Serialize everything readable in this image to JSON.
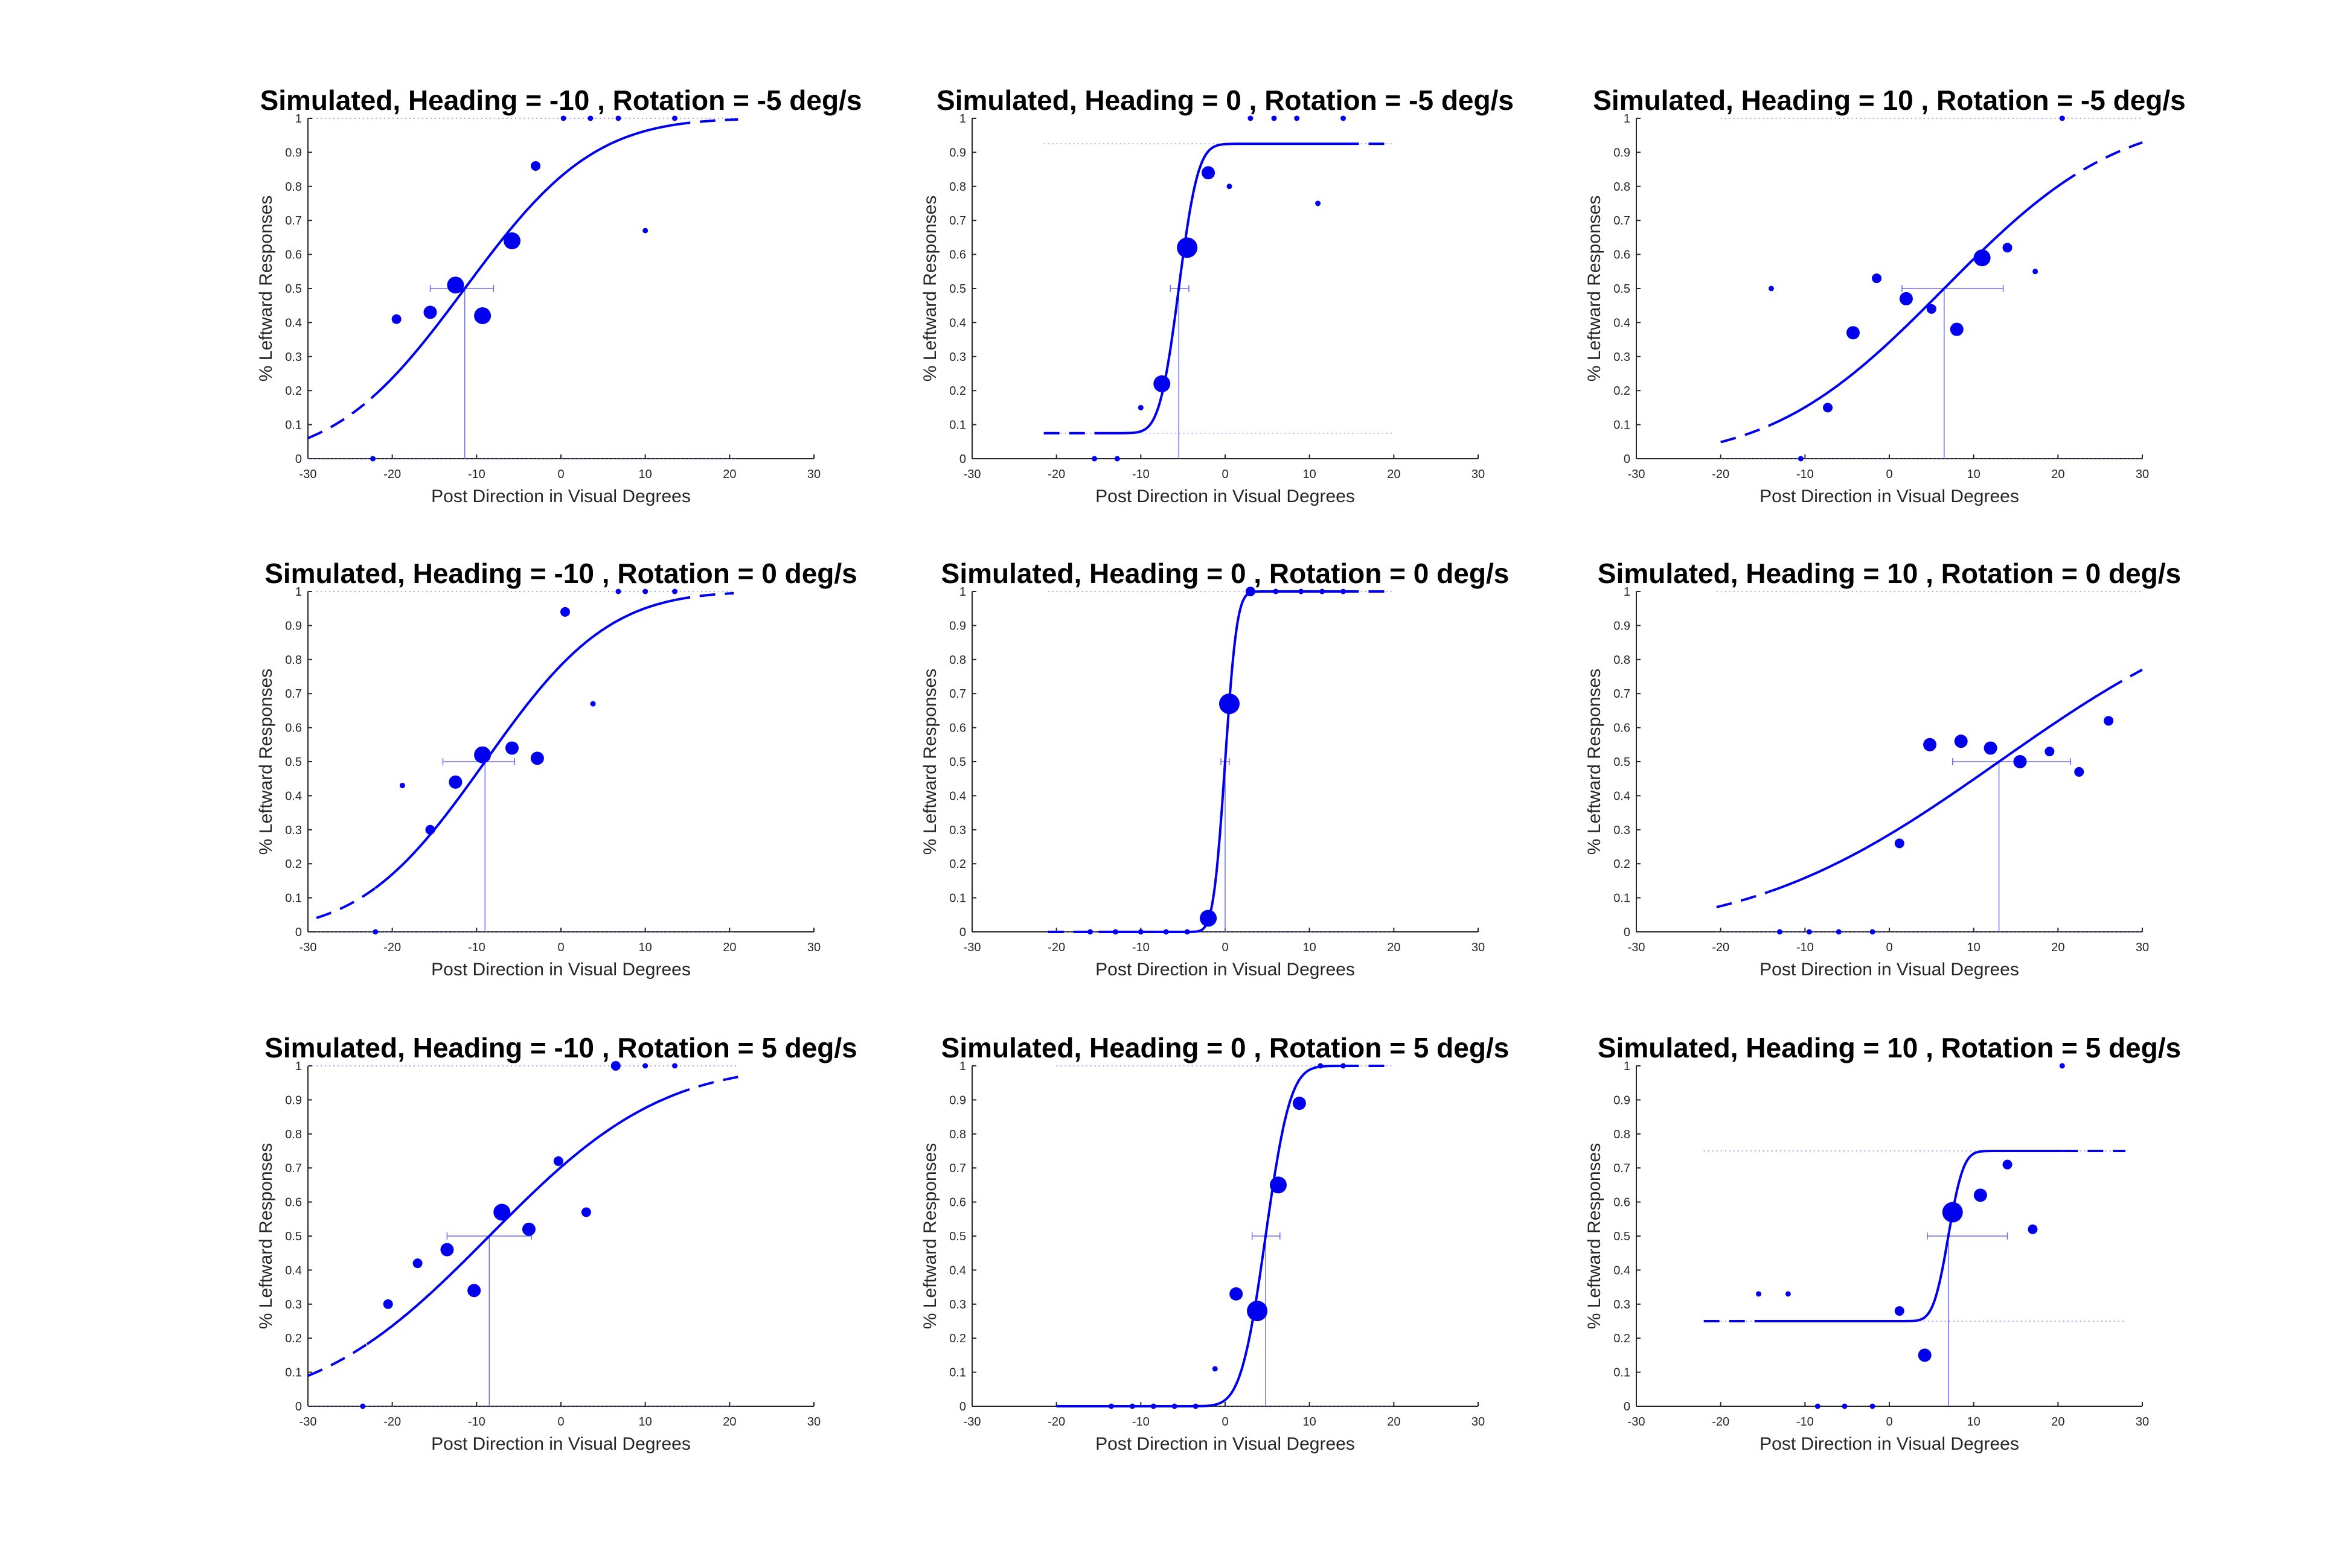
{
  "colors": {
    "series": "#0000ee",
    "guide": "#6b6bf5",
    "axis": "#262626",
    "background": "#ffffff"
  },
  "chart_data": [
    {
      "type": "scatter",
      "title": "Simulated, Heading = -10 , Rotation = -5 deg/s",
      "xlabel": "Post Direction in Visual Degrees",
      "ylabel": "% Leftward Responses",
      "xlim": [
        -30,
        30
      ],
      "ylim": [
        0,
        1
      ],
      "xticks": [
        -30,
        -20,
        -10,
        0,
        10,
        20,
        30
      ],
      "yticks": [
        0,
        0.1,
        0.2,
        0.3,
        0.4,
        0.5,
        0.6,
        0.7,
        0.8,
        0.9,
        1
      ],
      "fit": {
        "mu": -11.4,
        "sigma": 12,
        "lower": 0,
        "upper": 1,
        "solid_range": [
          -22.5,
          13.5
        ],
        "dashed_range": [
          -30,
          21
        ]
      },
      "pse": -11.4,
      "pse_ci": [
        -15.5,
        -8
      ],
      "points": [
        {
          "x": -22.3,
          "y": 0,
          "size": 1
        },
        {
          "x": -19.5,
          "y": 0.41,
          "size": 2
        },
        {
          "x": -15.5,
          "y": 0.43,
          "size": 3
        },
        {
          "x": -12.5,
          "y": 0.51,
          "size": 4
        },
        {
          "x": -9.3,
          "y": 0.42,
          "size": 4
        },
        {
          "x": -5.8,
          "y": 0.64,
          "size": 4
        },
        {
          "x": -3,
          "y": 0.86,
          "size": 2
        },
        {
          "x": 0.3,
          "y": 1,
          "size": 1
        },
        {
          "x": 3.5,
          "y": 1,
          "size": 1
        },
        {
          "x": 6.8,
          "y": 1,
          "size": 1
        },
        {
          "x": 10,
          "y": 0.67,
          "size": 1
        },
        {
          "x": 13.5,
          "y": 1,
          "size": 1
        }
      ]
    },
    {
      "type": "scatter",
      "title": "Simulated, Heading = 0 , Rotation = -5 deg/s",
      "xlabel": "Post Direction in Visual Degrees",
      "ylabel": "% Leftward Responses",
      "xlim": [
        -30,
        30
      ],
      "ylim": [
        0,
        1
      ],
      "xticks": [
        -30,
        -20,
        -10,
        0,
        10,
        20,
        30
      ],
      "yticks": [
        0,
        0.1,
        0.2,
        0.3,
        0.4,
        0.5,
        0.6,
        0.7,
        0.8,
        0.9,
        1
      ],
      "fit": {
        "mu": -5.5,
        "sigma": 1.8,
        "lower": 0.075,
        "upper": 0.925,
        "solid_range": [
          -15.5,
          14
        ],
        "dashed_range": [
          -21.5,
          20
        ]
      },
      "pse": -5.5,
      "pse_ci": [
        -6.5,
        -4.3
      ],
      "points": [
        {
          "x": -15.5,
          "y": 0,
          "size": 1
        },
        {
          "x": -12.8,
          "y": 0,
          "size": 1
        },
        {
          "x": -10,
          "y": 0.15,
          "size": 1
        },
        {
          "x": -7.5,
          "y": 0.22,
          "size": 4
        },
        {
          "x": -4.5,
          "y": 0.62,
          "size": 5
        },
        {
          "x": -2,
          "y": 0.84,
          "size": 3
        },
        {
          "x": 0.5,
          "y": 0.8,
          "size": 1
        },
        {
          "x": 3,
          "y": 1,
          "size": 1
        },
        {
          "x": 5.8,
          "y": 1,
          "size": 1
        },
        {
          "x": 8.5,
          "y": 1,
          "size": 1
        },
        {
          "x": 11,
          "y": 0.75,
          "size": 1
        },
        {
          "x": 14,
          "y": 1,
          "size": 1
        }
      ]
    },
    {
      "type": "scatter",
      "title": "Simulated, Heading = 10 , Rotation = -5 deg/s",
      "xlabel": "Post Direction in Visual Degrees",
      "ylabel": "% Leftward Responses",
      "xlim": [
        -30,
        30
      ],
      "ylim": [
        0,
        1
      ],
      "xticks": [
        -30,
        -20,
        -10,
        0,
        10,
        20,
        30
      ],
      "yticks": [
        0,
        0.1,
        0.2,
        0.3,
        0.4,
        0.5,
        0.6,
        0.7,
        0.8,
        0.9,
        1
      ],
      "fit": {
        "mu": 6.5,
        "sigma": 16,
        "lower": 0,
        "upper": 1,
        "solid_range": [
          -14,
          20.5
        ],
        "dashed_range": [
          -20,
          30
        ]
      },
      "pse": 6.5,
      "pse_ci": [
        1.5,
        13.5
      ],
      "points": [
        {
          "x": -14,
          "y": 0.5,
          "size": 1
        },
        {
          "x": -10.5,
          "y": 0,
          "size": 1
        },
        {
          "x": -7.3,
          "y": 0.15,
          "size": 2
        },
        {
          "x": -4.3,
          "y": 0.37,
          "size": 3
        },
        {
          "x": -1.5,
          "y": 0.53,
          "size": 2
        },
        {
          "x": 2,
          "y": 0.47,
          "size": 3
        },
        {
          "x": 5,
          "y": 0.44,
          "size": 2
        },
        {
          "x": 8,
          "y": 0.38,
          "size": 3
        },
        {
          "x": 11,
          "y": 0.59,
          "size": 4
        },
        {
          "x": 14,
          "y": 0.62,
          "size": 2
        },
        {
          "x": 17.3,
          "y": 0.55,
          "size": 1
        },
        {
          "x": 20.5,
          "y": 1,
          "size": 1
        }
      ]
    },
    {
      "type": "scatter",
      "title": "Simulated, Heading = -10 , Rotation = 0 deg/s",
      "xlabel": "Post Direction in Visual Degrees",
      "ylabel": "% Leftward Responses",
      "xlim": [
        -30,
        30
      ],
      "ylim": [
        0,
        1
      ],
      "xticks": [
        -30,
        -20,
        -10,
        0,
        10,
        20,
        30
      ],
      "yticks": [
        0,
        0.1,
        0.2,
        0.3,
        0.4,
        0.5,
        0.6,
        0.7,
        0.8,
        0.9,
        1
      ],
      "fit": {
        "mu": -9,
        "sigma": 11.5,
        "lower": 0,
        "upper": 1,
        "solid_range": [
          -22,
          13.5
        ],
        "dashed_range": [
          -29,
          20.5
        ]
      },
      "pse": -9,
      "pse_ci": [
        -14,
        -5.5
      ],
      "points": [
        {
          "x": -22,
          "y": 0,
          "size": 1
        },
        {
          "x": -18.8,
          "y": 0.43,
          "size": 1
        },
        {
          "x": -15.5,
          "y": 0.3,
          "size": 2
        },
        {
          "x": -12.5,
          "y": 0.44,
          "size": 3
        },
        {
          "x": -9.3,
          "y": 0.52,
          "size": 4
        },
        {
          "x": -5.8,
          "y": 0.54,
          "size": 3
        },
        {
          "x": -2.8,
          "y": 0.51,
          "size": 3
        },
        {
          "x": 0.5,
          "y": 0.94,
          "size": 2
        },
        {
          "x": 3.8,
          "y": 0.67,
          "size": 1
        },
        {
          "x": 6.8,
          "y": 1,
          "size": 1
        },
        {
          "x": 10,
          "y": 1,
          "size": 1
        },
        {
          "x": 13.5,
          "y": 1,
          "size": 1
        }
      ]
    },
    {
      "type": "scatter",
      "title": "Simulated, Heading = 0 , Rotation = 0 deg/s",
      "xlabel": "Post Direction in Visual Degrees",
      "ylabel": "% Leftward Responses",
      "xlim": [
        -30,
        30
      ],
      "ylim": [
        0,
        1
      ],
      "xticks": [
        -30,
        -20,
        -10,
        0,
        10,
        20,
        30
      ],
      "yticks": [
        0,
        0.1,
        0.2,
        0.3,
        0.4,
        0.5,
        0.6,
        0.7,
        0.8,
        0.9,
        1
      ],
      "fit": {
        "mu": 0,
        "sigma": 1.1,
        "lower": 0,
        "upper": 1,
        "solid_range": [
          -15,
          14
        ],
        "dashed_range": [
          -21,
          20
        ]
      },
      "pse": 0,
      "pse_ci": [
        -0.5,
        0.5
      ],
      "points": [
        {
          "x": -16,
          "y": 0,
          "size": 1
        },
        {
          "x": -13,
          "y": 0,
          "size": 1
        },
        {
          "x": -10,
          "y": 0,
          "size": 1
        },
        {
          "x": -7,
          "y": 0,
          "size": 1
        },
        {
          "x": -4.5,
          "y": 0,
          "size": 1
        },
        {
          "x": -2,
          "y": 0.04,
          "size": 4
        },
        {
          "x": 0.5,
          "y": 0.67,
          "size": 5
        },
        {
          "x": 3,
          "y": 1,
          "size": 2
        },
        {
          "x": 6,
          "y": 1,
          "size": 1
        },
        {
          "x": 9,
          "y": 1,
          "size": 1
        },
        {
          "x": 11.5,
          "y": 1,
          "size": 1
        },
        {
          "x": 14,
          "y": 1,
          "size": 1
        }
      ]
    },
    {
      "type": "scatter",
      "title": "Simulated, Heading = 10 , Rotation = 0 deg/s",
      "xlabel": "Post Direction in Visual Degrees",
      "ylabel": "% Leftward Responses",
      "xlim": [
        -30,
        30
      ],
      "ylim": [
        0,
        1
      ],
      "xticks": [
        -30,
        -20,
        -10,
        0,
        10,
        20,
        30
      ],
      "yticks": [
        0,
        0.1,
        0.2,
        0.3,
        0.4,
        0.5,
        0.6,
        0.7,
        0.8,
        0.9,
        1
      ],
      "fit": {
        "mu": 13,
        "sigma": 23,
        "lower": 0,
        "upper": 1,
        "solid_range": [
          -14,
          26
        ],
        "dashed_range": [
          -20.5,
          30
        ]
      },
      "pse": 13,
      "pse_ci": [
        7.5,
        21.5
      ],
      "points": [
        {
          "x": -13,
          "y": 0,
          "size": 1
        },
        {
          "x": -9.5,
          "y": 0,
          "size": 1
        },
        {
          "x": -6,
          "y": 0,
          "size": 1
        },
        {
          "x": -2,
          "y": 0,
          "size": 1
        },
        {
          "x": 1.2,
          "y": 0.26,
          "size": 2
        },
        {
          "x": 4.8,
          "y": 0.55,
          "size": 3
        },
        {
          "x": 8.5,
          "y": 0.56,
          "size": 3
        },
        {
          "x": 12,
          "y": 0.54,
          "size": 3
        },
        {
          "x": 15.5,
          "y": 0.5,
          "size": 3
        },
        {
          "x": 19,
          "y": 0.53,
          "size": 2
        },
        {
          "x": 22.5,
          "y": 0.47,
          "size": 2
        },
        {
          "x": 26,
          "y": 0.62,
          "size": 2
        }
      ]
    },
    {
      "type": "scatter",
      "title": "Simulated, Heading = -10 , Rotation = 5 deg/s",
      "xlabel": "Post Direction in Visual Degrees",
      "ylabel": "% Leftward Responses",
      "xlim": [
        -30,
        30
      ],
      "ylim": [
        0,
        1
      ],
      "xticks": [
        -30,
        -20,
        -10,
        0,
        10,
        20,
        30
      ],
      "yticks": [
        0,
        0.1,
        0.2,
        0.3,
        0.4,
        0.5,
        0.6,
        0.7,
        0.8,
        0.9,
        1
      ],
      "fit": {
        "mu": -8.5,
        "sigma": 16,
        "lower": 0,
        "upper": 1,
        "solid_range": [
          -23,
          13.5
        ],
        "dashed_range": [
          -30,
          21
        ]
      },
      "pse": -8.5,
      "pse_ci": [
        -13.5,
        -3.5
      ],
      "points": [
        {
          "x": -23.5,
          "y": 0,
          "size": 1
        },
        {
          "x": -20.5,
          "y": 0.3,
          "size": 2
        },
        {
          "x": -17,
          "y": 0.42,
          "size": 2
        },
        {
          "x": -13.5,
          "y": 0.46,
          "size": 3
        },
        {
          "x": -10.3,
          "y": 0.34,
          "size": 3
        },
        {
          "x": -7,
          "y": 0.57,
          "size": 4
        },
        {
          "x": -3.8,
          "y": 0.52,
          "size": 3
        },
        {
          "x": -0.3,
          "y": 0.72,
          "size": 2
        },
        {
          "x": 3,
          "y": 0.57,
          "size": 2
        },
        {
          "x": 6.5,
          "y": 1,
          "size": 2
        },
        {
          "x": 10,
          "y": 1,
          "size": 1
        },
        {
          "x": 13.5,
          "y": 1,
          "size": 1
        }
      ]
    },
    {
      "type": "scatter",
      "title": "Simulated, Heading = 0 , Rotation = 5 deg/s",
      "xlabel": "Post Direction in Visual Degrees",
      "ylabel": "% Leftward Responses",
      "xlim": [
        -30,
        30
      ],
      "ylim": [
        0,
        1
      ],
      "xticks": [
        -30,
        -20,
        -10,
        0,
        10,
        20,
        30
      ],
      "yticks": [
        0,
        0.1,
        0.2,
        0.3,
        0.4,
        0.5,
        0.6,
        0.7,
        0.8,
        0.9,
        1
      ],
      "fit": {
        "mu": 4.8,
        "sigma": 2.3,
        "lower": 0,
        "upper": 1,
        "solid_range": [
          -20,
          14
        ],
        "dashed_range": [
          -20,
          20
        ]
      },
      "pse": 4.8,
      "pse_ci": [
        3.2,
        6.5
      ],
      "points": [
        {
          "x": -13.5,
          "y": 0,
          "size": 1
        },
        {
          "x": -11,
          "y": 0,
          "size": 1
        },
        {
          "x": -8.5,
          "y": 0,
          "size": 1
        },
        {
          "x": -6,
          "y": 0,
          "size": 1
        },
        {
          "x": -3.5,
          "y": 0,
          "size": 1
        },
        {
          "x": -1.2,
          "y": 0.11,
          "size": 1
        },
        {
          "x": 1.3,
          "y": 0.33,
          "size": 3
        },
        {
          "x": 3.8,
          "y": 0.28,
          "size": 5
        },
        {
          "x": 6.3,
          "y": 0.65,
          "size": 4
        },
        {
          "x": 8.8,
          "y": 0.89,
          "size": 3
        },
        {
          "x": 11.3,
          "y": 1,
          "size": 1
        },
        {
          "x": 14,
          "y": 1,
          "size": 1
        }
      ]
    },
    {
      "type": "scatter",
      "title": "Simulated, Heading = 10 , Rotation = 5 deg/s",
      "xlabel": "Post Direction in Visual Degrees",
      "ylabel": "% Leftward Responses",
      "xlim": [
        -30,
        30
      ],
      "ylim": [
        0,
        1
      ],
      "xticks": [
        -30,
        -20,
        -10,
        0,
        10,
        20,
        30
      ],
      "yticks": [
        0,
        0.1,
        0.2,
        0.3,
        0.4,
        0.5,
        0.6,
        0.7,
        0.8,
        0.9,
        1
      ],
      "fit": {
        "mu": 7,
        "sigma": 1.4,
        "lower": 0.25,
        "upper": 0.75,
        "solid_range": [
          -15.5,
          20.5
        ],
        "dashed_range": [
          -22,
          28
        ]
      },
      "pse": 7,
      "pse_ci": [
        4.5,
        14
      ],
      "points": [
        {
          "x": -15.5,
          "y": 0.33,
          "size": 1
        },
        {
          "x": -12,
          "y": 0.33,
          "size": 1
        },
        {
          "x": -8.5,
          "y": 0,
          "size": 1
        },
        {
          "x": -5.3,
          "y": 0,
          "size": 1
        },
        {
          "x": -2,
          "y": 0,
          "size": 1
        },
        {
          "x": 1.2,
          "y": 0.28,
          "size": 2
        },
        {
          "x": 4.2,
          "y": 0.15,
          "size": 3
        },
        {
          "x": 7.5,
          "y": 0.57,
          "size": 5
        },
        {
          "x": 10.8,
          "y": 0.62,
          "size": 3
        },
        {
          "x": 14,
          "y": 0.71,
          "size": 2
        },
        {
          "x": 17,
          "y": 0.52,
          "size": 2
        },
        {
          "x": 20.5,
          "y": 1,
          "size": 1
        }
      ]
    }
  ]
}
